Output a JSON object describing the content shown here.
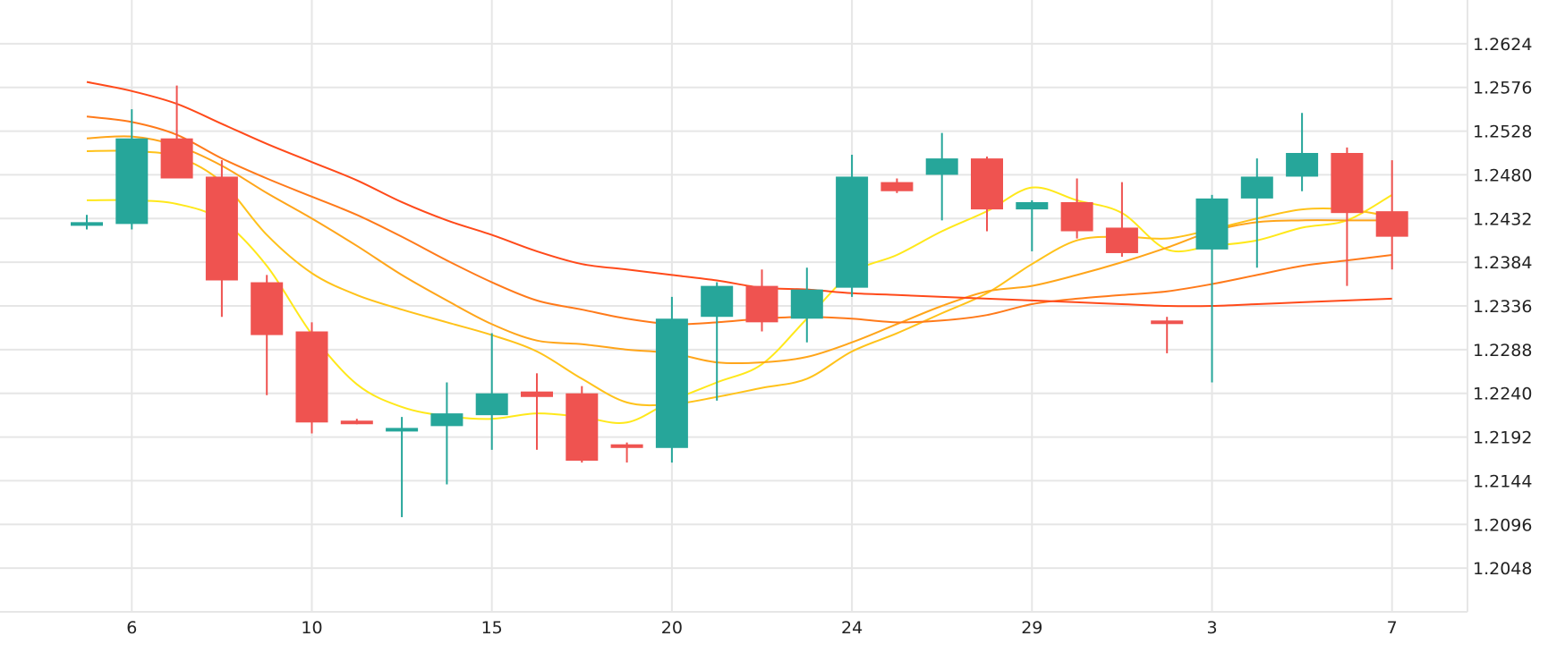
{
  "chart_data": {
    "type": "candlestick",
    "x_tick_labels": [
      {
        "index": 1,
        "label": "6"
      },
      {
        "index": 5,
        "label": "10"
      },
      {
        "index": 9,
        "label": "15"
      },
      {
        "index": 13,
        "label": "20"
      },
      {
        "index": 17,
        "label": "24"
      },
      {
        "index": 21,
        "label": "29"
      },
      {
        "index": 25,
        "label": "3"
      },
      {
        "index": 29,
        "label": "7"
      }
    ],
    "y_ticks": [
      "1.2624",
      "1.2576",
      "1.2528",
      "1.2480",
      "1.2432",
      "1.2384",
      "1.2336",
      "1.2288",
      "1.2240",
      "1.2192",
      "1.2144",
      "1.2096",
      "1.2048"
    ],
    "ylim": [
      1.2,
      1.2672
    ],
    "grid": true,
    "colors": {
      "up": "#26a69a",
      "down": "#ef5350",
      "grid": "#e6e6e6"
    },
    "candles": [
      {
        "o": 1.2424,
        "h": 1.2436,
        "l": 1.242,
        "c": 1.2428
      },
      {
        "o": 1.2426,
        "h": 1.2552,
        "l": 1.242,
        "c": 1.252
      },
      {
        "o": 1.252,
        "h": 1.2578,
        "l": 1.2476,
        "c": 1.2476
      },
      {
        "o": 1.2478,
        "h": 1.2496,
        "l": 1.2324,
        "c": 1.2364
      },
      {
        "o": 1.2362,
        "h": 1.237,
        "l": 1.2238,
        "c": 1.2304
      },
      {
        "o": 1.2308,
        "h": 1.2318,
        "l": 1.2196,
        "c": 1.2208
      },
      {
        "o": 1.221,
        "h": 1.2212,
        "l": 1.2206,
        "c": 1.2208
      },
      {
        "o": 1.22,
        "h": 1.2214,
        "l": 1.2104,
        "c": 1.2202
      },
      {
        "o": 1.2204,
        "h": 1.2252,
        "l": 1.214,
        "c": 1.2218
      },
      {
        "o": 1.2216,
        "h": 1.2306,
        "l": 1.2178,
        "c": 1.224
      },
      {
        "o": 1.2242,
        "h": 1.2262,
        "l": 1.2178,
        "c": 1.2236
      },
      {
        "o": 1.224,
        "h": 1.2248,
        "l": 1.2164,
        "c": 1.2166
      },
      {
        "o": 1.2184,
        "h": 1.2186,
        "l": 1.2164,
        "c": 1.218
      },
      {
        "o": 1.218,
        "h": 1.2346,
        "l": 1.2164,
        "c": 1.2322
      },
      {
        "o": 1.2324,
        "h": 1.2362,
        "l": 1.2232,
        "c": 1.2358
      },
      {
        "o": 1.2358,
        "h": 1.2376,
        "l": 1.2308,
        "c": 1.2318
      },
      {
        "o": 1.2322,
        "h": 1.2378,
        "l": 1.2296,
        "c": 1.2354
      },
      {
        "o": 1.2356,
        "h": 1.2502,
        "l": 1.2346,
        "c": 1.2478
      },
      {
        "o": 1.2472,
        "h": 1.2476,
        "l": 1.246,
        "c": 1.2462
      },
      {
        "o": 1.248,
        "h": 1.2526,
        "l": 1.243,
        "c": 1.2498
      },
      {
        "o": 1.2498,
        "h": 1.25,
        "l": 1.2418,
        "c": 1.2442
      },
      {
        "o": 1.2442,
        "h": 1.2452,
        "l": 1.2396,
        "c": 1.245
      },
      {
        "o": 1.245,
        "h": 1.2476,
        "l": 1.241,
        "c": 1.2418
      },
      {
        "o": 1.2422,
        "h": 1.2472,
        "l": 1.239,
        "c": 1.2394
      },
      {
        "o": 1.232,
        "h": 1.2324,
        "l": 1.2284,
        "c": 1.2318
      },
      {
        "o": 1.2398,
        "h": 1.2458,
        "l": 1.2252,
        "c": 1.2454
      },
      {
        "o": 1.2454,
        "h": 1.2498,
        "l": 1.2378,
        "c": 1.2478
      },
      {
        "o": 1.2478,
        "h": 1.2548,
        "l": 1.2462,
        "c": 1.2504
      },
      {
        "o": 1.2504,
        "h": 1.251,
        "l": 1.2358,
        "c": 1.2438
      },
      {
        "o": 1.244,
        "h": 1.2496,
        "l": 1.2376,
        "c": 1.2412
      }
    ],
    "moving_averages": [
      {
        "color": "#ffe81a",
        "values": [
          1.2452,
          1.2452,
          1.2448,
          1.243,
          1.238,
          1.2305,
          1.225,
          1.2225,
          1.2215,
          1.2212,
          1.2218,
          1.2214,
          1.2208,
          1.2232,
          1.2252,
          1.2272,
          1.2322,
          1.2372,
          1.2392,
          1.2418,
          1.244,
          1.2466,
          1.2452,
          1.2438,
          1.2398,
          1.2402,
          1.2408,
          1.2422,
          1.243,
          1.2458
        ]
      },
      {
        "color": "#ffc21a",
        "values": [
          1.2506,
          1.2506,
          1.25,
          1.2472,
          1.2414,
          1.2372,
          1.2348,
          1.2332,
          1.2318,
          1.2304,
          1.2286,
          1.2256,
          1.223,
          1.2228,
          1.2236,
          1.2246,
          1.2256,
          1.2286,
          1.2306,
          1.2328,
          1.235,
          1.2382,
          1.2408,
          1.2412,
          1.241,
          1.242,
          1.2432,
          1.2442,
          1.2442,
          1.2434
        ]
      },
      {
        "color": "#ffa51a",
        "values": [
          1.252,
          1.2522,
          1.2512,
          1.249,
          1.246,
          1.2432,
          1.2402,
          1.237,
          1.2342,
          1.2316,
          1.2298,
          1.2294,
          1.2288,
          1.2284,
          1.2274,
          1.2274,
          1.228,
          1.2296,
          1.2316,
          1.2336,
          1.2352,
          1.2358,
          1.237,
          1.2384,
          1.24,
          1.2418,
          1.2428,
          1.243,
          1.243,
          1.243
        ]
      },
      {
        "color": "#ff7a1a",
        "values": [
          1.2544,
          1.2538,
          1.2524,
          1.2498,
          1.2476,
          1.2456,
          1.2436,
          1.2412,
          1.2386,
          1.2362,
          1.2342,
          1.2332,
          1.2322,
          1.2316,
          1.2318,
          1.2322,
          1.2324,
          1.2322,
          1.2318,
          1.232,
          1.2326,
          1.2338,
          1.2344,
          1.2348,
          1.2352,
          1.236,
          1.237,
          1.238,
          1.2386,
          1.2392
        ]
      },
      {
        "color": "#ff4a1a",
        "values": [
          1.2582,
          1.2572,
          1.2558,
          1.2536,
          1.2514,
          1.2494,
          1.2474,
          1.245,
          1.243,
          1.2414,
          1.2396,
          1.2382,
          1.2376,
          1.237,
          1.2364,
          1.2356,
          1.2354,
          1.235,
          1.2348,
          1.2346,
          1.2344,
          1.2342,
          1.234,
          1.2338,
          1.2336,
          1.2336,
          1.2338,
          1.234,
          1.2342,
          1.2344
        ]
      }
    ]
  }
}
